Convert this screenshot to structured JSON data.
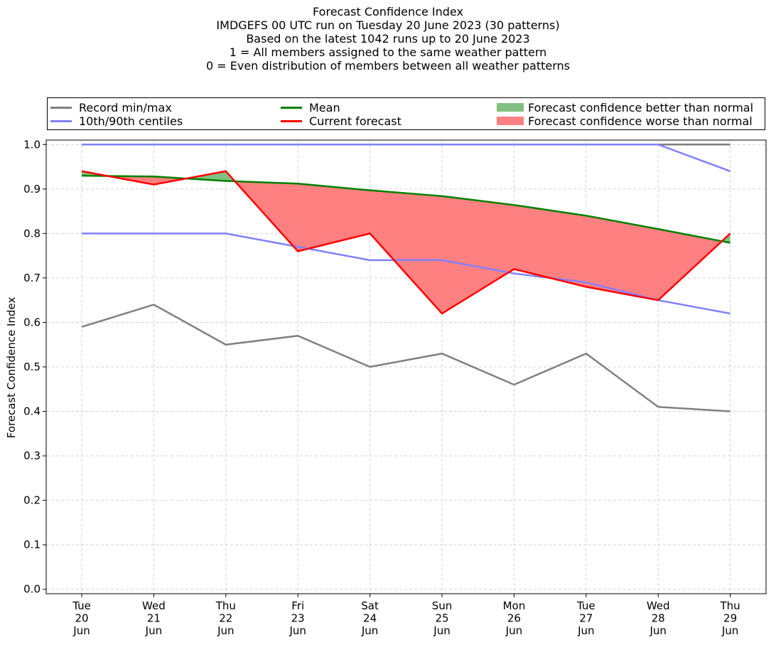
{
  "chart_data": {
    "type": "line",
    "title_lines": [
      "Forecast Confidence Index",
      "IMDGEFS 00 UTC run on Tuesday 20 June 2023 (30 patterns)",
      "Based on the latest 1042 runs up to 20 June 2023",
      "1 = All members assigned to the same weather pattern",
      "0 = Even distribution of members between all weather patterns"
    ],
    "ylabel": "Forecast Confidence Index",
    "xlabel": "",
    "x_ticks": [
      [
        "Tue",
        "20",
        "Jun"
      ],
      [
        "Wed",
        "21",
        "Jun"
      ],
      [
        "Thu",
        "22",
        "Jun"
      ],
      [
        "Fri",
        "23",
        "Jun"
      ],
      [
        "Sat",
        "24",
        "Jun"
      ],
      [
        "Sun",
        "25",
        "Jun"
      ],
      [
        "Mon",
        "26",
        "Jun"
      ],
      [
        "Tue",
        "27",
        "Jun"
      ],
      [
        "Wed",
        "28",
        "Jun"
      ],
      [
        "Thu",
        "29",
        "Jun"
      ]
    ],
    "y_ticks": [
      "0.0",
      "0.1",
      "0.2",
      "0.3",
      "0.4",
      "0.5",
      "0.6",
      "0.7",
      "0.8",
      "0.9",
      "1.0"
    ],
    "ylim": [
      -0.01,
      1.01
    ],
    "grid": true,
    "legend_position": "top",
    "series": {
      "record_max": [
        1.0,
        1.0,
        1.0,
        1.0,
        1.0,
        1.0,
        1.0,
        1.0,
        1.0,
        1.0
      ],
      "record_min": [
        0.59,
        0.64,
        0.55,
        0.57,
        0.5,
        0.53,
        0.46,
        0.53,
        0.41,
        0.4
      ],
      "p90": [
        1.0,
        1.0,
        1.0,
        1.0,
        1.0,
        1.0,
        1.0,
        1.0,
        1.0,
        0.94
      ],
      "p10": [
        0.8,
        0.8,
        0.8,
        0.77,
        0.74,
        0.74,
        0.71,
        0.69,
        0.65,
        0.62
      ],
      "mean": [
        0.93,
        0.928,
        0.918,
        0.912,
        0.897,
        0.884,
        0.864,
        0.84,
        0.81,
        0.779
      ],
      "current": [
        0.94,
        0.91,
        0.94,
        0.76,
        0.8,
        0.62,
        0.72,
        0.68,
        0.65,
        0.8
      ]
    },
    "legend": {
      "record": "Record min/max",
      "centiles": "10th/90th centiles",
      "mean": "Mean",
      "current": "Current forecast",
      "better": "Forecast confidence better than normal",
      "worse": "Forecast confidence worse than normal"
    },
    "colors": {
      "record": "#808080",
      "centiles": "#8080ff",
      "mean": "#008000",
      "current": "#ff0000",
      "better": "#80c080",
      "worse": "#ff8080",
      "grid": "#d3d3d3"
    }
  }
}
